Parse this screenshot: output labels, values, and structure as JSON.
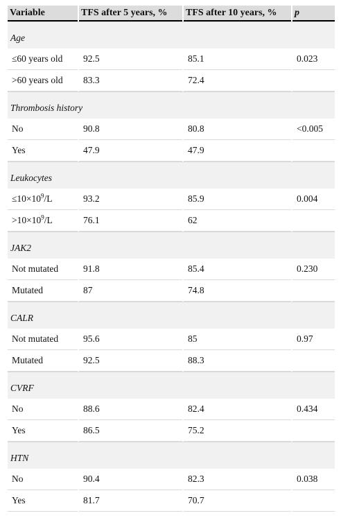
{
  "headers": [
    "Variable",
    "TFS after 5 years, %",
    "TFS after 10 years, %",
    "p"
  ],
  "groups": [
    {
      "name": "Age",
      "rows": [
        {
          "label": "≤60 years old",
          "sup": "",
          "tail": "",
          "v5": "92.5",
          "v10": "85.1",
          "p": "0.023"
        },
        {
          "label": ">60 years old",
          "sup": "",
          "tail": "",
          "v5": "83.3",
          "v10": "72.4",
          "p": ""
        }
      ]
    },
    {
      "name": "Thrombosis history",
      "rows": [
        {
          "label": "No",
          "sup": "",
          "tail": "",
          "v5": "90.8",
          "v10": "80.8",
          "p": "<0.005"
        },
        {
          "label": "Yes",
          "sup": "",
          "tail": "",
          "v5": "47.9",
          "v10": "47.9",
          "p": ""
        }
      ]
    },
    {
      "name": "Leukocytes",
      "rows": [
        {
          "label": "≤10×10",
          "sup": "9",
          "tail": "/L",
          "v5": "93.2",
          "v10": "85.9",
          "p": "0.004"
        },
        {
          "label": ">10×10",
          "sup": "9",
          "tail": "/L",
          "v5": "76.1",
          "v10": "62",
          "p": ""
        }
      ]
    },
    {
      "name": "JAK2",
      "rows": [
        {
          "label": "Not mutated",
          "sup": "",
          "tail": "",
          "v5": "91.8",
          "v10": "85.4",
          "p": "0.230"
        },
        {
          "label": "Mutated",
          "sup": "",
          "tail": "",
          "v5": "87",
          "v10": "74.8",
          "p": ""
        }
      ]
    },
    {
      "name": "CALR",
      "rows": [
        {
          "label": "Not mutated",
          "sup": "",
          "tail": "",
          "v5": "95.6",
          "v10": "85",
          "p": "0.97"
        },
        {
          "label": "Mutated",
          "sup": "",
          "tail": "",
          "v5": "92.5",
          "v10": "88.3",
          "p": ""
        }
      ]
    },
    {
      "name": "CVRF",
      "rows": [
        {
          "label": "No",
          "sup": "",
          "tail": "",
          "v5": "88.6",
          "v10": "82.4",
          "p": "0.434"
        },
        {
          "label": "Yes",
          "sup": "",
          "tail": "",
          "v5": "86.5",
          "v10": "75.2",
          "p": ""
        }
      ]
    },
    {
      "name": "HTN",
      "rows": [
        {
          "label": "No",
          "sup": "",
          "tail": "",
          "v5": "90.4",
          "v10": "82.3",
          "p": "0.038"
        },
        {
          "label": "Yes",
          "sup": "",
          "tail": "",
          "v5": "81.7",
          "v10": "70.7",
          "p": ""
        }
      ]
    }
  ]
}
